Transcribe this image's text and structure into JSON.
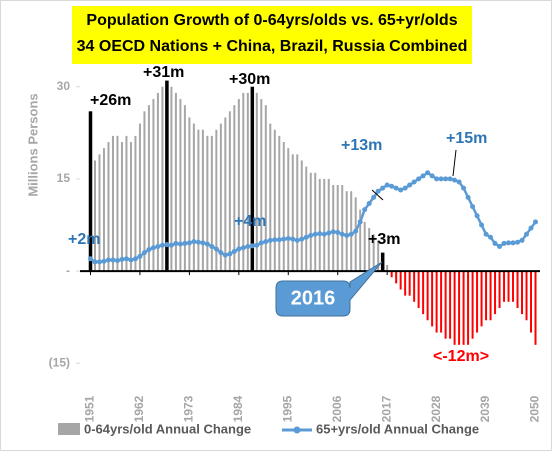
{
  "chart_data": {
    "type": "bar-line",
    "title": "Population Growth of 0-64yrs/olds vs. 65+yr/olds",
    "subtitle": "34 OECD Nations + China,  Brazil, Russia Combined",
    "y_label": "Millions Persons",
    "x": [
      1951,
      1952,
      1953,
      1954,
      1955,
      1956,
      1957,
      1958,
      1959,
      1960,
      1961,
      1962,
      1963,
      1964,
      1965,
      1966,
      1967,
      1968,
      1969,
      1970,
      1971,
      1972,
      1973,
      1974,
      1975,
      1976,
      1977,
      1978,
      1979,
      1980,
      1981,
      1982,
      1983,
      1984,
      1985,
      1986,
      1987,
      1988,
      1989,
      1990,
      1991,
      1992,
      1993,
      1994,
      1995,
      1996,
      1997,
      1998,
      1999,
      2000,
      2001,
      2002,
      2003,
      2004,
      2005,
      2006,
      2007,
      2008,
      2009,
      2010,
      2011,
      2012,
      2013,
      2014,
      2015,
      2016,
      2017,
      2018,
      2019,
      2020,
      2021,
      2022,
      2023,
      2024,
      2025,
      2026,
      2027,
      2028,
      2029,
      2030,
      2031,
      2032,
      2033,
      2034,
      2035,
      2036,
      2037,
      2038,
      2039,
      2040,
      2041,
      2042,
      2043,
      2044,
      2045,
      2046,
      2047,
      2048,
      2049,
      2050
    ],
    "xlim": [
      1950,
      2051
    ],
    "xticks": [
      1951,
      1962,
      1973,
      1984,
      1995,
      2006,
      2017,
      2028,
      2039,
      2050
    ],
    "ylim": [
      -20,
      35
    ],
    "yticks": [
      {
        "value": -15,
        "label": "(15)"
      },
      {
        "value": 0,
        "label": "-"
      },
      15,
      30
    ],
    "series": [
      {
        "name": "0-64yrs/old Annual Change",
        "kind": "bar",
        "color": "#a6a6a6",
        "values": [
          26,
          18,
          19,
          20,
          21,
          22,
          22,
          21,
          22,
          21,
          22,
          24,
          26,
          27,
          28,
          29,
          30,
          31,
          30,
          29,
          28,
          27,
          25,
          24,
          23,
          23,
          22,
          22,
          23,
          24,
          25,
          26,
          27,
          28,
          29,
          29,
          30,
          29,
          28,
          27,
          24,
          23,
          22,
          21,
          20,
          19,
          19,
          18,
          17,
          16,
          16,
          15,
          15,
          15,
          14,
          14,
          14,
          13,
          13,
          12,
          10,
          8,
          7,
          6,
          5,
          3,
          1,
          -1,
          -2,
          -3,
          -4,
          -4,
          -5,
          -6,
          -7,
          -8,
          -9,
          -10,
          -10,
          -11,
          -11,
          -12,
          -12,
          -12,
          -12,
          -11,
          -10,
          -9,
          -8,
          -8,
          -7,
          -6,
          -5,
          -5,
          -5,
          -6,
          -7,
          -8,
          -10,
          -12
        ],
        "colors": [
          "#000000",
          "#a6a6a6",
          "#a6a6a6",
          "#a6a6a6",
          "#a6a6a6",
          "#a6a6a6",
          "#a6a6a6",
          "#a6a6a6",
          "#a6a6a6",
          "#a6a6a6",
          "#a6a6a6",
          "#a6a6a6",
          "#a6a6a6",
          "#a6a6a6",
          "#a6a6a6",
          "#a6a6a6",
          "#a6a6a6",
          "#000000",
          "#a6a6a6",
          "#a6a6a6",
          "#a6a6a6",
          "#a6a6a6",
          "#a6a6a6",
          "#a6a6a6",
          "#a6a6a6",
          "#a6a6a6",
          "#a6a6a6",
          "#a6a6a6",
          "#a6a6a6",
          "#a6a6a6",
          "#a6a6a6",
          "#a6a6a6",
          "#a6a6a6",
          "#a6a6a6",
          "#a6a6a6",
          "#a6a6a6",
          "#000000",
          "#a6a6a6",
          "#a6a6a6",
          "#a6a6a6",
          "#a6a6a6",
          "#a6a6a6",
          "#a6a6a6",
          "#a6a6a6",
          "#a6a6a6",
          "#a6a6a6",
          "#a6a6a6",
          "#a6a6a6",
          "#a6a6a6",
          "#a6a6a6",
          "#a6a6a6",
          "#a6a6a6",
          "#a6a6a6",
          "#a6a6a6",
          "#a6a6a6",
          "#a6a6a6",
          "#a6a6a6",
          "#a6a6a6",
          "#a6a6a6",
          "#a6a6a6",
          "#a6a6a6",
          "#a6a6a6",
          "#a6a6a6",
          "#a6a6a6",
          "#a6a6a6",
          "#000000",
          "#a6a6a6",
          "#ff0000",
          "#ff0000",
          "#ff0000",
          "#ff0000",
          "#ff0000",
          "#ff0000",
          "#ff0000",
          "#ff0000",
          "#ff0000",
          "#ff0000",
          "#ff0000",
          "#ff0000",
          "#ff0000",
          "#ff0000",
          "#ff0000",
          "#ff0000",
          "#ff0000",
          "#ff0000",
          "#ff0000",
          "#ff0000",
          "#ff0000",
          "#ff0000",
          "#ff0000",
          "#ff0000",
          "#ff0000",
          "#ff0000",
          "#ff0000",
          "#ff0000",
          "#ff0000",
          "#ff0000",
          "#ff0000",
          "#ff0000",
          "#ff0000"
        ]
      },
      {
        "name": "65+yrs/old Annual Change",
        "kind": "line",
        "color": "#5b9bd5",
        "values": [
          2,
          1.5,
          1.5,
          1.6,
          1.8,
          1.8,
          1.7,
          1.9,
          2,
          1.8,
          2,
          2.4,
          3,
          3.5,
          3.8,
          4,
          4.2,
          4.3,
          4.2,
          4.5,
          4.4,
          4.5,
          4.6,
          4.8,
          4.7,
          4.6,
          4.4,
          4,
          3.6,
          3,
          2.6,
          2.8,
          3.2,
          3.6,
          3.8,
          4,
          4.1,
          4.2,
          4.6,
          4.8,
          5,
          5.1,
          5.1,
          5.2,
          5.3,
          5.2,
          5,
          5.2,
          5.5,
          5.8,
          6,
          6.1,
          6,
          6.2,
          6.4,
          6.3,
          6,
          5.8,
          6,
          6.5,
          8,
          10,
          11,
          12,
          13,
          13.5,
          14,
          13.8,
          13.5,
          13.2,
          13.5,
          14,
          14.5,
          15,
          15.5,
          16,
          15.5,
          15,
          15,
          15,
          15,
          14.8,
          14.5,
          13.5,
          12,
          10.5,
          9,
          7.5,
          6,
          5.5,
          4.5,
          4,
          4.5,
          4.6,
          4.6,
          4.7,
          5,
          6,
          7,
          8
        ]
      }
    ],
    "annotations": [
      "+26m",
      "+31m",
      "+30m",
      "+3m",
      "+2m",
      "+4m",
      "+13m",
      "+15m",
      "<-12m>",
      "2016"
    ]
  }
}
